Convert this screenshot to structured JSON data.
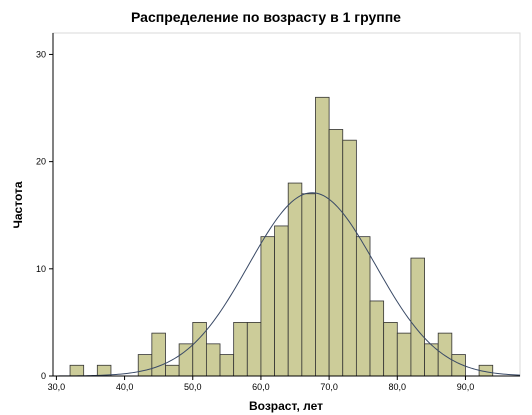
{
  "chart_data": {
    "type": "bar",
    "title": "Распределение по возрасту в 1 группе",
    "xlabel": "Возраст, лет",
    "ylabel": "Частота",
    "bin_width": 2,
    "bins": [
      {
        "x0": 32,
        "x1": 34,
        "value": 1
      },
      {
        "x0": 34,
        "x1": 36,
        "value": 0
      },
      {
        "x0": 36,
        "x1": 38,
        "value": 1
      },
      {
        "x0": 38,
        "x1": 40,
        "value": 0
      },
      {
        "x0": 40,
        "x1": 42,
        "value": 0
      },
      {
        "x0": 42,
        "x1": 44,
        "value": 2
      },
      {
        "x0": 44,
        "x1": 46,
        "value": 4
      },
      {
        "x0": 46,
        "x1": 48,
        "value": 1
      },
      {
        "x0": 48,
        "x1": 50,
        "value": 3
      },
      {
        "x0": 50,
        "x1": 52,
        "value": 5
      },
      {
        "x0": 52,
        "x1": 54,
        "value": 3
      },
      {
        "x0": 54,
        "x1": 56,
        "value": 2
      },
      {
        "x0": 56,
        "x1": 58,
        "value": 5
      },
      {
        "x0": 58,
        "x1": 60,
        "value": 5
      },
      {
        "x0": 60,
        "x1": 62,
        "value": 13
      },
      {
        "x0": 62,
        "x1": 64,
        "value": 14
      },
      {
        "x0": 64,
        "x1": 66,
        "value": 18
      },
      {
        "x0": 66,
        "x1": 68,
        "value": 17
      },
      {
        "x0": 68,
        "x1": 70,
        "value": 26
      },
      {
        "x0": 70,
        "x1": 72,
        "value": 23
      },
      {
        "x0": 72,
        "x1": 74,
        "value": 22
      },
      {
        "x0": 74,
        "x1": 76,
        "value": 13
      },
      {
        "x0": 76,
        "x1": 78,
        "value": 7
      },
      {
        "x0": 78,
        "x1": 80,
        "value": 5
      },
      {
        "x0": 80,
        "x1": 82,
        "value": 4
      },
      {
        "x0": 82,
        "x1": 84,
        "value": 11
      },
      {
        "x0": 84,
        "x1": 86,
        "value": 3
      },
      {
        "x0": 86,
        "x1": 88,
        "value": 4
      },
      {
        "x0": 88,
        "x1": 90,
        "value": 2
      },
      {
        "x0": 90,
        "x1": 92,
        "value": 0
      },
      {
        "x0": 92,
        "x1": 94,
        "value": 1
      }
    ],
    "normal_curve": {
      "mean": 67.5,
      "sd": 9.3,
      "peak": 17.1
    },
    "xlim": [
      29.5,
      98
    ],
    "ylim": [
      0,
      32
    ],
    "x_ticks": [
      {
        "value": 30,
        "label": "30,0"
      },
      {
        "value": 40,
        "label": "40,0"
      },
      {
        "value": 50,
        "label": "50,0"
      },
      {
        "value": 60,
        "label": "60,0"
      },
      {
        "value": 70,
        "label": "70,0"
      },
      {
        "value": 80,
        "label": "80,0"
      },
      {
        "value": 90,
        "label": "90,0"
      }
    ],
    "y_ticks": [
      {
        "value": 0,
        "label": "0"
      },
      {
        "value": 10,
        "label": "10"
      },
      {
        "value": 20,
        "label": "20"
      },
      {
        "value": 30,
        "label": "30"
      }
    ],
    "grid": false,
    "legend": "none",
    "colors": {
      "bar_fill": "#cccc99",
      "bar_stroke": "#333333",
      "curve": "#3a4a66",
      "axis": "#000000"
    }
  }
}
